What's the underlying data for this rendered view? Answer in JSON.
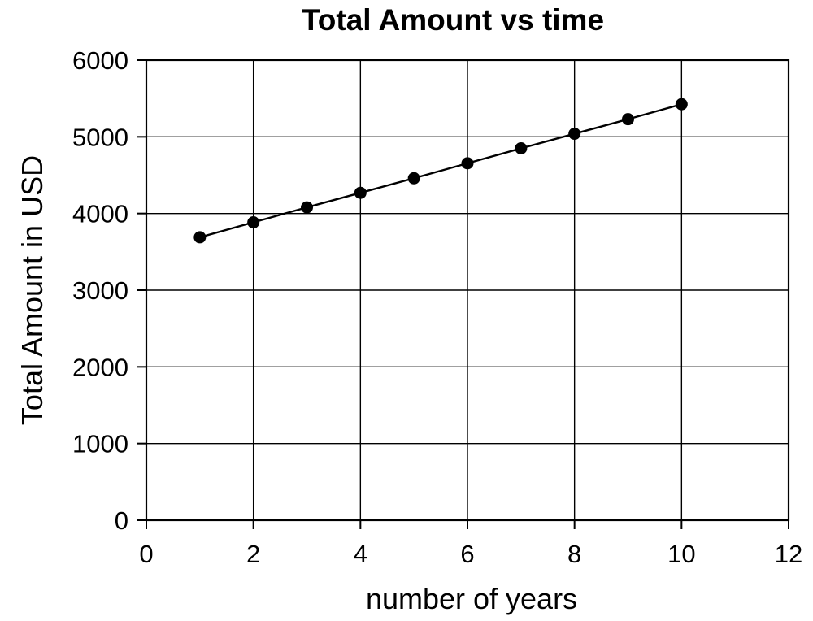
{
  "chart_data": {
    "type": "line",
    "title": "Total Amount vs time",
    "xlabel": "number of years",
    "ylabel": "Total Amount in USD",
    "x": [
      1,
      2,
      3,
      4,
      5,
      6,
      7,
      8,
      9,
      10
    ],
    "values": [
      3690,
      3885,
      4080,
      4270,
      4460,
      4655,
      4850,
      5040,
      5230,
      5425
    ],
    "xlim": [
      0,
      12
    ],
    "ylim": [
      0,
      6000
    ],
    "x_ticks": [
      0,
      2,
      4,
      6,
      8,
      10,
      12
    ],
    "y_ticks": [
      0,
      1000,
      2000,
      3000,
      4000,
      5000,
      6000
    ],
    "grid": true,
    "legend": false,
    "marker": "circle",
    "colors": {
      "background": "#ffffff",
      "line": "#000000",
      "marker": "#000000",
      "grid": "#000000",
      "frame": "#000000",
      "text": "#000000"
    }
  }
}
